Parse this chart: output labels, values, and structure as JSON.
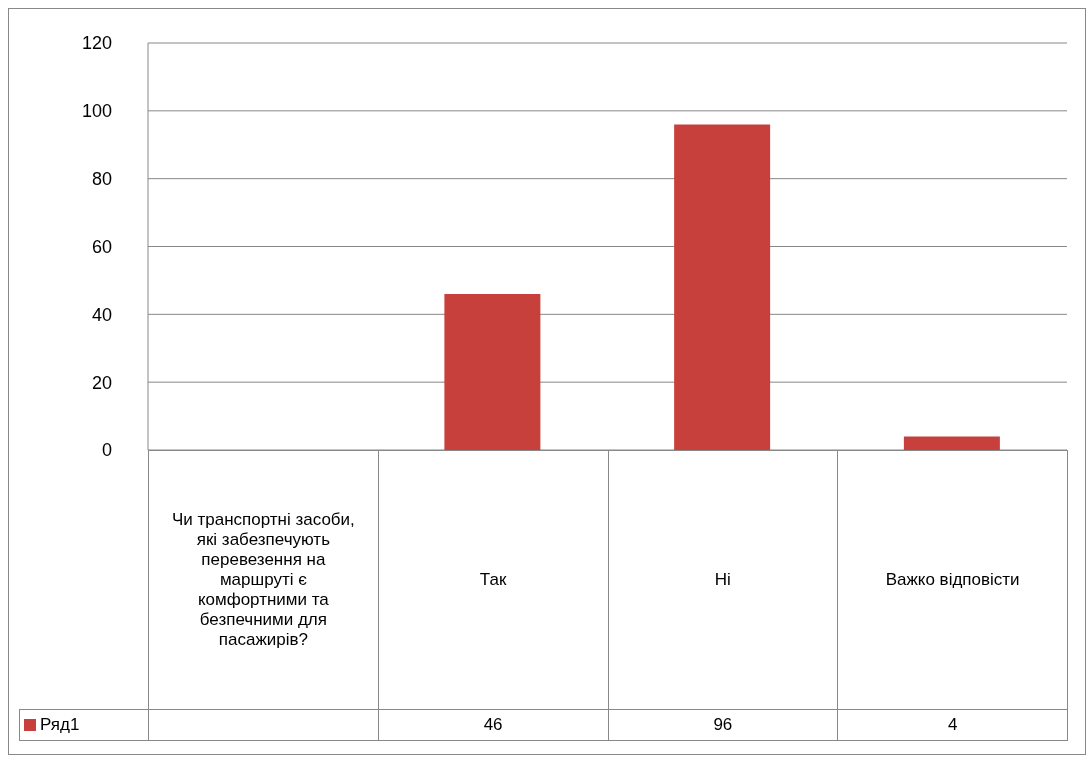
{
  "chart_data": {
    "type": "bar",
    "categories": [
      "Чи транспортні засоби, які забезпечують перевезення на маршруті є комфортними та безпечними для пасажирів?",
      "Так",
      "Ні",
      "Важко відповісти"
    ],
    "series": [
      {
        "name": "Ряд1",
        "color": "#c8403c",
        "values": [
          null,
          46,
          96,
          4
        ]
      }
    ],
    "ylim": [
      0,
      120
    ],
    "yticks": [
      0,
      20,
      40,
      60,
      80,
      100,
      120
    ],
    "grid": "y",
    "legend": "bottom",
    "data_labels": true
  }
}
